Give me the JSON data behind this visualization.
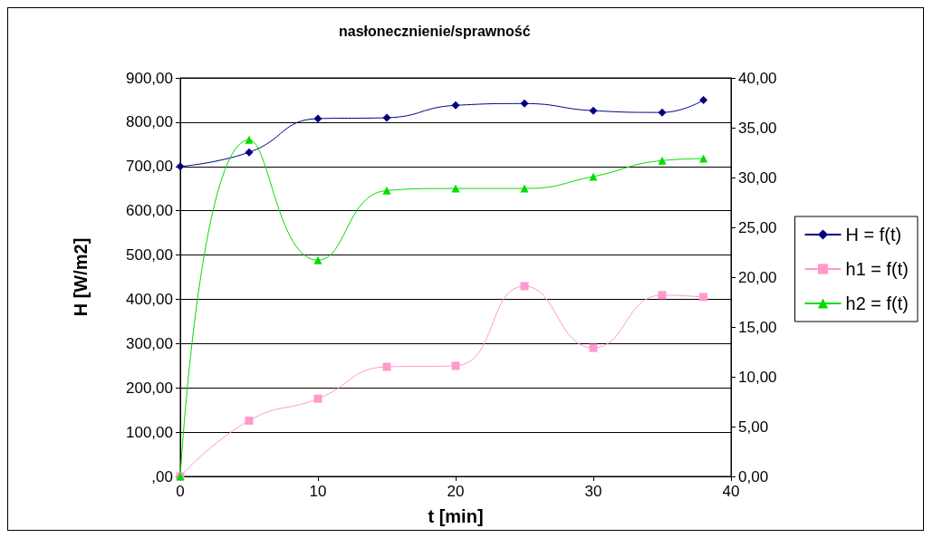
{
  "chart_data": {
    "type": "line",
    "title": "nasłonecznienie/sprawność",
    "xlabel": "t [min]",
    "ylabel": "H [W/m2]",
    "xlim": [
      0,
      40
    ],
    "xticks": [
      0,
      10,
      20,
      30,
      40
    ],
    "ylim": [
      0,
      900
    ],
    "yticks": [
      {
        "value": 0,
        "label": ",00"
      },
      {
        "value": 100,
        "label": "100,00"
      },
      {
        "value": 200,
        "label": "200,00"
      },
      {
        "value": 300,
        "label": "300,00"
      },
      {
        "value": 400,
        "label": "400,00"
      },
      {
        "value": 500,
        "label": "500,00"
      },
      {
        "value": 600,
        "label": "600,00"
      },
      {
        "value": 700,
        "label": "700,00"
      },
      {
        "value": 800,
        "label": "800,00"
      },
      {
        "value": 900,
        "label": "900,00"
      }
    ],
    "y2lim": [
      0,
      40
    ],
    "y2ticks": [
      {
        "value": 0,
        "label": "0,00"
      },
      {
        "value": 5,
        "label": "5,00"
      },
      {
        "value": 10,
        "label": "10,00"
      },
      {
        "value": 15,
        "label": "15,00"
      },
      {
        "value": 20,
        "label": "20,00"
      },
      {
        "value": 25,
        "label": "25,00"
      },
      {
        "value": 30,
        "label": "30,00"
      },
      {
        "value": 35,
        "label": "35,00"
      },
      {
        "value": 40,
        "label": "40,00"
      }
    ],
    "grid": "y",
    "legend": "right",
    "series": [
      {
        "name": "H = f(t)",
        "color": "#000080",
        "marker": "diamond",
        "x": [
          0,
          5,
          10,
          15,
          20,
          25,
          30,
          35,
          38
        ],
        "values": [
          700,
          732,
          808,
          810,
          838,
          842,
          826,
          822,
          850
        ]
      },
      {
        "name": "h1 = f(t)",
        "color": "#ff99cc",
        "marker": "square",
        "axis": "y2",
        "x": [
          0,
          5,
          10,
          15,
          20,
          25,
          30,
          35,
          38
        ],
        "values": [
          0,
          5.6,
          7.8,
          11.0,
          11.1,
          19.1,
          12.9,
          18.2,
          18.0
        ]
      },
      {
        "name": "h2 = f(t)",
        "color": "#00dd00",
        "marker": "triangle",
        "axis": "y2",
        "x": [
          0,
          5,
          10,
          15,
          20,
          25,
          30,
          35,
          38
        ],
        "values": [
          0,
          33.8,
          21.7,
          28.7,
          28.9,
          28.9,
          30.1,
          31.7,
          31.9
        ]
      }
    ]
  }
}
